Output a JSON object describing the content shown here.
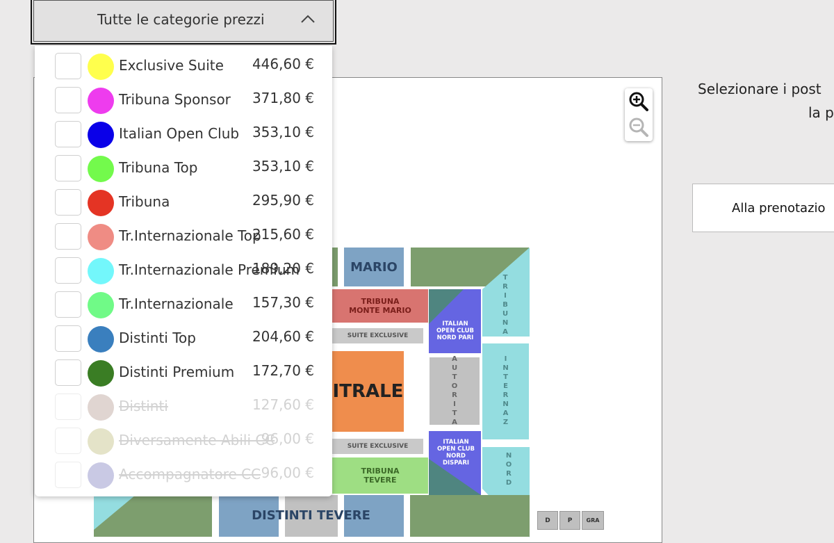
{
  "dropdown": {
    "title": "Tutte le categorie prezzi",
    "categories": [
      {
        "label": "Exclusive Suite",
        "price": "446,60 €",
        "color": "#ffff4d",
        "disabled": false
      },
      {
        "label": "Tribuna Sponsor",
        "price": "371,80 €",
        "color": "#ee3cee",
        "disabled": false
      },
      {
        "label": "Italian Open Club",
        "price": "353,10 €",
        "color": "#0a00e8",
        "disabled": false
      },
      {
        "label": "Tribuna Top",
        "price": "353,10 €",
        "color": "#73fa4c",
        "disabled": false
      },
      {
        "label": "Tribuna",
        "price": "295,90 €",
        "color": "#e43424",
        "disabled": false
      },
      {
        "label": "Tr.Internazionale Top",
        "price": "215,60 €",
        "color": "#ef8c84",
        "disabled": false
      },
      {
        "label": "Tr.Internazionale Premium",
        "price": "189,20 €",
        "color": "#73f7fb",
        "disabled": false
      },
      {
        "label": "Tr.Internazionale",
        "price": "157,30 €",
        "color": "#70fa87",
        "disabled": false
      },
      {
        "label": "Distinti Top",
        "price": "204,60 €",
        "color": "#3a7fbe",
        "disabled": false
      },
      {
        "label": "Distinti Premium",
        "price": "172,70 €",
        "color": "#3a7d24",
        "disabled": false
      },
      {
        "label": "Distinti",
        "price": "127,60 €",
        "color": "#ddd0cc",
        "disabled": true
      },
      {
        "label": "Diversamente Abili CC",
        "price": "96,00 €",
        "color": "#e1e0c2",
        "disabled": true
      },
      {
        "label": "Accompagnatore CC",
        "price": "96,00 €",
        "color": "#c3c3e1",
        "disabled": true
      }
    ]
  },
  "map": {
    "sections": {
      "mario": "MARIO",
      "tribuna_monte_mario": "TRIBUNA MONTE MARIO",
      "suite_exclusive_top": "SUITE EXCLUSIVE",
      "suite_exclusive_bottom": "SUITE EXCLUSIVE",
      "centrale": "ITRALE",
      "tribuna_tevere": "TRIBUNA TEVERE",
      "distinti_tevere": "DISTINTI TEVERE",
      "ioc_nord_pari": "ITALIAN OPEN CLUB NORD PARI",
      "ioc_nord_dispari": "ITALIAN OPEN CLUB NORD DISPARI",
      "autorita": "AUTORITA",
      "tribuna_v": "TRIBUNA",
      "internaz": "INTERNAZ",
      "nord": "NORD",
      "d": "D",
      "p": "P",
      "gra": "GRA"
    },
    "zoom_in_icon": "zoom-in-icon",
    "zoom_out_icon": "zoom-out-icon"
  },
  "side": {
    "instruction_line1": "Selezionare i post",
    "instruction_line2": "la p",
    "booking_button": "Alla prenotazio"
  }
}
